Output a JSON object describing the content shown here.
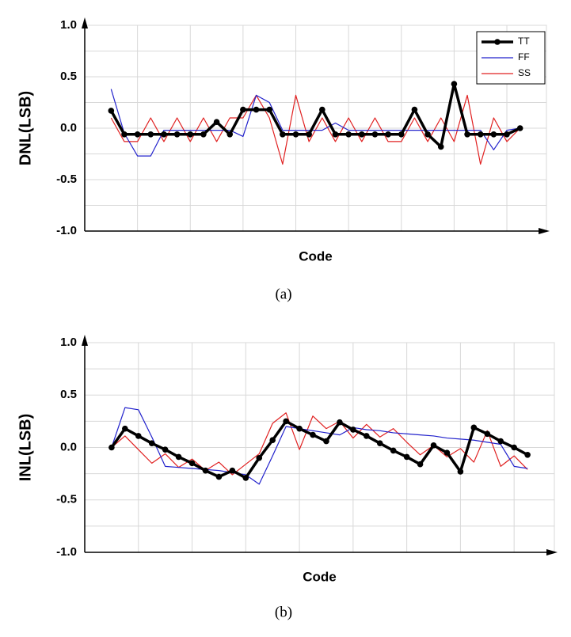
{
  "chart_data": [
    {
      "type": "line",
      "caption": "(a)",
      "y_label": "DNL(LSB)",
      "x_label": "Code",
      "x": [
        0,
        1,
        2,
        3,
        4,
        5,
        6,
        7,
        8,
        9,
        10,
        11,
        12,
        13,
        14,
        15,
        16,
        17,
        18,
        19,
        20,
        21,
        22,
        23,
        24,
        25,
        26,
        27,
        28,
        29,
        30,
        31
      ],
      "xlim": [
        -2,
        33
      ],
      "xgrid": [
        2,
        6,
        10,
        14,
        18,
        22,
        26,
        30
      ],
      "ylim": [
        -1,
        1
      ],
      "yticks": [
        {
          "value": 1,
          "label": "1.0"
        },
        {
          "value": 0.5,
          "label": "0.5"
        },
        {
          "value": 0,
          "label": "0.0"
        },
        {
          "value": -0.5,
          "label": "-0.5"
        },
        {
          "value": -1,
          "label": "-1.0"
        }
      ],
      "ygrid": [
        0.75,
        0.25,
        -0.25,
        -0.75
      ],
      "grid": true,
      "legend": "upper right",
      "series": [
        {
          "name": "TT",
          "color": "#000000",
          "markers": true,
          "values": [
            0.17,
            -0.06,
            -0.06,
            -0.06,
            -0.06,
            -0.06,
            -0.06,
            -0.06,
            0.06,
            -0.06,
            0.18,
            0.18,
            0.18,
            -0.06,
            -0.06,
            -0.06,
            0.18,
            -0.06,
            -0.06,
            -0.06,
            -0.06,
            -0.06,
            -0.06,
            0.18,
            -0.06,
            -0.18,
            0.43,
            -0.06,
            -0.06,
            -0.06,
            -0.06,
            0.0
          ]
        },
        {
          "name": "FF",
          "color": "#2222cc",
          "values": [
            0.38,
            -0.05,
            -0.27,
            -0.27,
            -0.02,
            -0.02,
            -0.02,
            -0.02,
            -0.02,
            -0.02,
            -0.08,
            0.32,
            0.25,
            -0.02,
            -0.02,
            -0.02,
            -0.02,
            0.05,
            -0.02,
            -0.02,
            -0.02,
            -0.02,
            -0.02,
            -0.02,
            -0.02,
            -0.02,
            -0.02,
            -0.02,
            -0.02,
            -0.21,
            -0.02,
            0.0
          ]
        },
        {
          "name": "SS",
          "color": "#e02020",
          "values": [
            0.1,
            -0.13,
            -0.13,
            0.1,
            -0.13,
            0.1,
            -0.13,
            0.1,
            -0.13,
            0.1,
            0.1,
            0.32,
            0.1,
            -0.35,
            0.32,
            -0.13,
            0.1,
            -0.13,
            0.1,
            -0.13,
            0.1,
            -0.13,
            -0.13,
            0.1,
            -0.13,
            0.1,
            -0.13,
            0.32,
            -0.35,
            0.1,
            -0.13,
            0.0
          ]
        }
      ]
    },
    {
      "type": "line",
      "caption": "(b)",
      "y_label": "INL(LSB)",
      "x_label": "Code",
      "x": [
        0,
        1,
        2,
        3,
        4,
        5,
        6,
        7,
        8,
        9,
        10,
        11,
        12,
        13,
        14,
        15,
        16,
        17,
        18,
        19,
        20,
        21,
        22,
        23,
        24,
        25,
        26,
        27,
        28,
        29,
        30,
        31
      ],
      "xlim": [
        -2,
        33
      ],
      "xgrid": [
        2,
        6,
        10,
        14,
        18,
        22,
        26,
        30
      ],
      "ylim": [
        -1,
        1
      ],
      "yticks": [
        {
          "value": 1,
          "label": "1.0"
        },
        {
          "value": 0.5,
          "label": "0.5"
        },
        {
          "value": 0,
          "label": "0.0"
        },
        {
          "value": -0.5,
          "label": "-0.5"
        },
        {
          "value": -1,
          "label": "-1.0"
        }
      ],
      "ygrid": [
        0.75,
        0.25,
        -0.25,
        -0.75
      ],
      "grid": true,
      "series": [
        {
          "name": "TT",
          "color": "#000000",
          "markers": true,
          "values": [
            0.0,
            0.18,
            0.11,
            0.04,
            -0.02,
            -0.09,
            -0.15,
            -0.22,
            -0.28,
            -0.22,
            -0.29,
            -0.1,
            0.07,
            0.25,
            0.18,
            0.12,
            0.06,
            0.24,
            0.17,
            0.11,
            0.04,
            -0.03,
            -0.09,
            -0.16,
            0.02,
            -0.05,
            -0.23,
            0.19,
            0.13,
            0.06,
            0.0,
            -0.07
          ]
        },
        {
          "name": "FF",
          "color": "#2222cc",
          "values": [
            0.0,
            0.38,
            0.36,
            0.1,
            -0.18,
            -0.19,
            -0.2,
            -0.21,
            -0.22,
            -0.24,
            -0.26,
            -0.35,
            -0.08,
            0.2,
            0.18,
            0.16,
            0.14,
            0.12,
            0.19,
            0.17,
            0.16,
            0.14,
            0.13,
            0.12,
            0.11,
            0.09,
            0.08,
            0.07,
            0.05,
            0.03,
            -0.18,
            -0.2
          ]
        },
        {
          "name": "SS",
          "color": "#e02020",
          "values": [
            0.0,
            0.11,
            -0.02,
            -0.15,
            -0.06,
            -0.19,
            -0.11,
            -0.22,
            -0.14,
            -0.26,
            -0.16,
            -0.06,
            0.23,
            0.33,
            -0.02,
            0.3,
            0.18,
            0.25,
            0.09,
            0.22,
            0.1,
            0.18,
            0.05,
            -0.07,
            0.02,
            -0.09,
            -0.01,
            -0.14,
            0.16,
            -0.18,
            -0.08,
            -0.21
          ]
        }
      ]
    }
  ]
}
